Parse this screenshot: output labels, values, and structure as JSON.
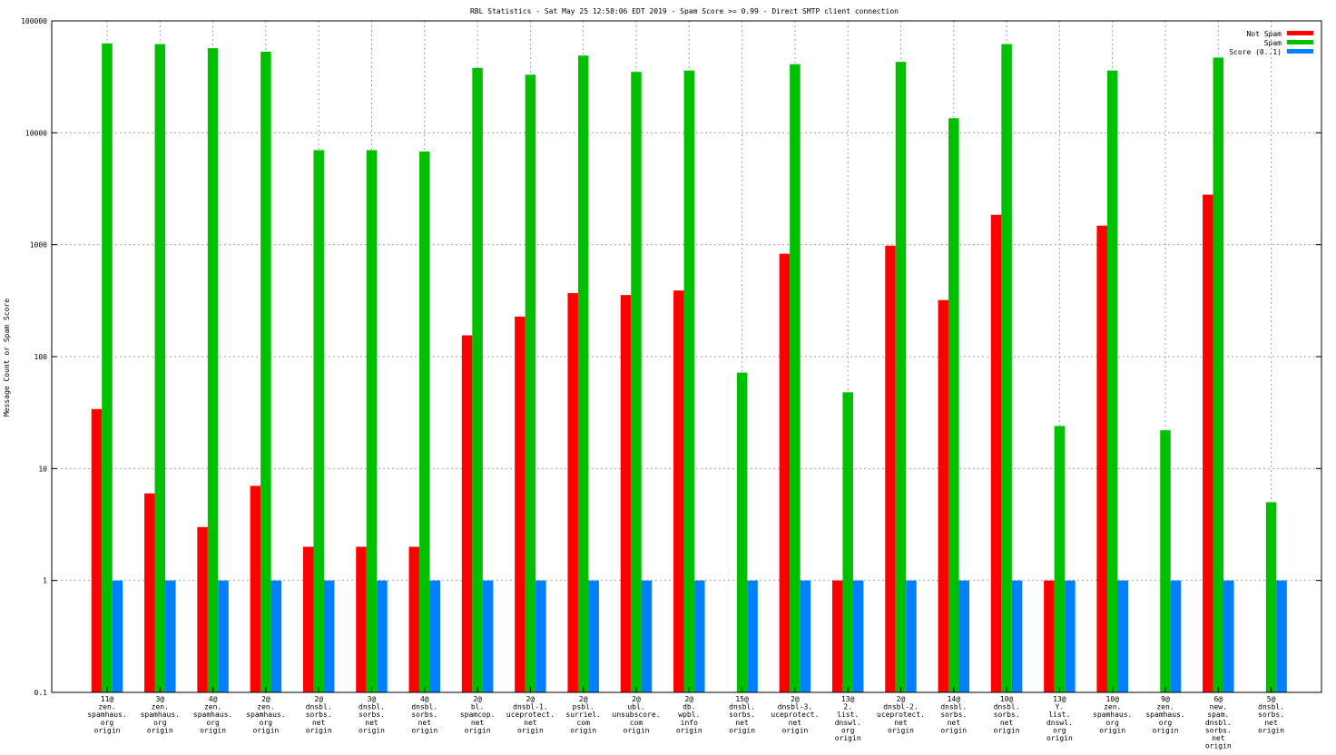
{
  "chart_data": {
    "type": "bar",
    "title": "RBL Statistics - Sat May 25 12:58:06 EDT 2019 - Spam Score >= 0.99 - Direct SMTP client connection",
    "xlabel": "",
    "ylabel": "Message Count or Spam Score",
    "yscale": "log",
    "ylim": [
      0.1,
      100000
    ],
    "yticks": [
      "0.1",
      "1",
      "10",
      "100",
      "1000",
      "10000",
      "100000"
    ],
    "ytick_values": [
      0.1,
      1,
      10,
      100,
      1000,
      10000,
      100000
    ],
    "grid": true,
    "legend_position": "top-right",
    "categories": [
      [
        "11@",
        "zen.",
        "spamhaus.",
        "org",
        "origin"
      ],
      [
        "3@",
        "zen.",
        "spamhaus.",
        "org",
        "origin"
      ],
      [
        "4@",
        "zen.",
        "spamhaus.",
        "org",
        "origin"
      ],
      [
        "2@",
        "zen.",
        "spamhaus.",
        "org",
        "origin"
      ],
      [
        "2@",
        "dnsbl.",
        "sorbs.",
        "net",
        "origin"
      ],
      [
        "3@",
        "dnsbl.",
        "sorbs.",
        "net",
        "origin"
      ],
      [
        "4@",
        "dnsbl.",
        "sorbs.",
        "net",
        "origin"
      ],
      [
        "2@",
        "bl.",
        "spamcop.",
        "net",
        "origin"
      ],
      [
        "2@",
        "dnsbl-1.",
        "uceprotect.",
        "net",
        "origin"
      ],
      [
        "2@",
        "psbl.",
        "surriel.",
        "com",
        "origin"
      ],
      [
        "2@",
        "ubl.",
        "unsubscore.",
        "com",
        "origin"
      ],
      [
        "2@",
        "db.",
        "wpbl.",
        "info",
        "origin"
      ],
      [
        "15@",
        "dnsbl.",
        "sorbs.",
        "net",
        "origin"
      ],
      [
        "2@",
        "dnsbl-3.",
        "uceprotect.",
        "net",
        "origin"
      ],
      [
        "13@",
        "2.",
        "list.",
        "dnswl.",
        "org",
        "origin"
      ],
      [
        "2@",
        "dnsbl-2.",
        "uceprotect.",
        "net",
        "origin"
      ],
      [
        "14@",
        "dnsbl.",
        "sorbs.",
        "net",
        "origin"
      ],
      [
        "10@",
        "dnsbl.",
        "sorbs.",
        "net",
        "origin"
      ],
      [
        "13@",
        "Y.",
        "list.",
        "dnswl.",
        "org",
        "origin"
      ],
      [
        "10@",
        "zen.",
        "spamhaus.",
        "org",
        "origin"
      ],
      [
        "9@",
        "zen.",
        "spamhaus.",
        "org",
        "origin"
      ],
      [
        "6@",
        "new.",
        "spam.",
        "dnsbl.",
        "sorbs.",
        "net",
        "origin"
      ],
      [
        "5@",
        "dnsbl.",
        "sorbs.",
        "net",
        "origin"
      ]
    ],
    "series": [
      {
        "name": "Not Spam",
        "color": "#ff0000",
        "values": [
          34,
          6,
          3,
          7,
          2,
          2,
          2,
          155,
          228,
          370,
          355,
          390,
          null,
          830,
          1,
          980,
          320,
          1850,
          1,
          1480,
          null,
          2800,
          null
        ]
      },
      {
        "name": "Spam",
        "color": "#00c000",
        "values": [
          63000,
          62000,
          57000,
          53000,
          7000,
          7000,
          6800,
          38000,
          33000,
          49000,
          35000,
          36000,
          72,
          41000,
          48,
          43000,
          13500,
          62000,
          24,
          36000,
          22,
          47000,
          5
        ]
      },
      {
        "name": "Score (0..1)",
        "color": "#0080ff",
        "values": [
          1,
          1,
          1,
          1,
          1,
          1,
          1,
          1,
          1,
          1,
          1,
          1,
          1,
          1,
          1,
          1,
          1,
          1,
          1,
          1,
          1,
          1,
          1
        ]
      }
    ]
  }
}
